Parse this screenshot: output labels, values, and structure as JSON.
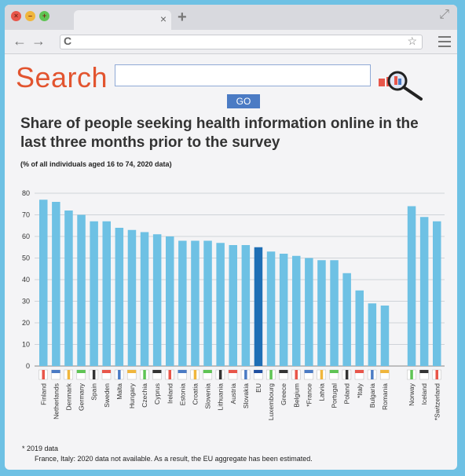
{
  "browser": {
    "tab_close": "×",
    "new_tab": "+",
    "back": "←",
    "forward": "→",
    "reload": "C",
    "bookmark": "☆",
    "expand": "⤢"
  },
  "search": {
    "title": "Search",
    "go_label": "GO",
    "input_value": ""
  },
  "colors": {
    "bar": "#6ec1e4",
    "bar_eu": "#1f6fb5",
    "search_red": "#e2542f",
    "go_blue": "#4b7bc4"
  },
  "chart_data": {
    "type": "bar",
    "title": "Share of people seeking health information online in the last three months prior to the survey",
    "subtitle": "(% of all individuals aged 16 to 74, 2020 data)",
    "xlabel": "",
    "ylabel": "",
    "ylim": [
      0,
      80
    ],
    "yticks": [
      0,
      10,
      20,
      30,
      40,
      50,
      60,
      70,
      80
    ],
    "grid": true,
    "highlight": "EU",
    "categories": [
      "Finland",
      "Netherlands",
      "Denmark",
      "Germany",
      "Spain",
      "Sweden",
      "Malta",
      "Hungary",
      "Czechia",
      "Cyprus",
      "Ireland",
      "Estonia",
      "Croatia",
      "Slovenia",
      "Lithuania",
      "Austria",
      "Slovakia",
      "EU",
      "Luxembourg",
      "Greece",
      "Belgium",
      "*France",
      "Latvia",
      "Portugal",
      "Poland",
      "*Italy",
      "Bulgaria",
      "Romania",
      "Norway",
      "Iceland",
      "*Switzerland"
    ],
    "values": [
      77,
      76,
      72,
      70,
      67,
      67,
      64,
      63,
      62,
      61,
      60,
      58,
      58,
      58,
      57,
      56,
      56,
      55,
      53,
      52,
      51,
      50,
      49,
      49,
      43,
      35,
      29,
      28,
      74,
      69,
      67
    ]
  },
  "footnotes": {
    "note1": "* 2019 data",
    "note2": "France, Italy: 2020 data not available. As a result, the EU aggregate has been estimated."
  }
}
